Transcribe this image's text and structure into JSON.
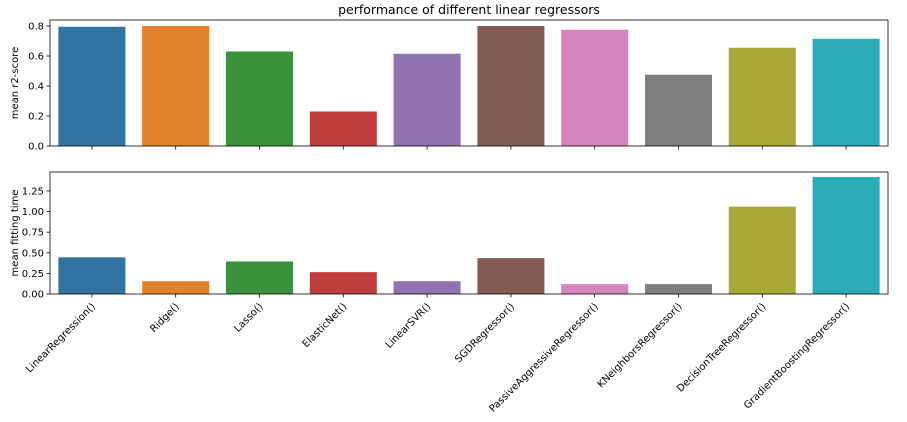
{
  "chart_data": [
    {
      "type": "bar",
      "title": "performance of different linear regressors",
      "xlabel": "",
      "ylabel": "mean r2-score",
      "ylim": [
        0,
        0.84
      ],
      "yticks": [
        "0.0",
        "0.2",
        "0.4",
        "0.6",
        "0.8"
      ],
      "grid": false,
      "categories": [
        "LinearRegression()",
        "Ridge()",
        "Lasso()",
        "ElasticNet()",
        "LinearSVR()",
        "SGDRegressor()",
        "PassiveAggressiveRegressor()",
        "KNeighborsRegressor()",
        "DecisionTreeRegressor()",
        "GradientBoostingRegressor()"
      ],
      "values": [
        0.795,
        0.8,
        0.63,
        0.23,
        0.615,
        0.8,
        0.775,
        0.475,
        0.655,
        0.715
      ],
      "colors": [
        "#3274a1",
        "#e1812c",
        "#3a923a",
        "#c03d3e",
        "#9372b2",
        "#845b53",
        "#d684bd",
        "#7f7f7f",
        "#a9aa35",
        "#2eabb8"
      ]
    },
    {
      "type": "bar",
      "title": "",
      "xlabel": "",
      "ylabel": "mean fitting time",
      "ylim": [
        0,
        1.48
      ],
      "yticks": [
        "0.00",
        "0.25",
        "0.50",
        "0.75",
        "1.00",
        "1.25"
      ],
      "grid": false,
      "categories": [
        "LinearRegression()",
        "Ridge()",
        "Lasso()",
        "ElasticNet()",
        "LinearSVR()",
        "SGDRegressor()",
        "PassiveAggressiveRegressor()",
        "KNeighborsRegressor()",
        "DecisionTreeRegressor()",
        "GradientBoostingRegressor()"
      ],
      "values": [
        0.445,
        0.155,
        0.395,
        0.265,
        0.155,
        0.435,
        0.12,
        0.12,
        1.06,
        1.42
      ],
      "colors": [
        "#3274a1",
        "#e1812c",
        "#3a923a",
        "#c03d3e",
        "#9372b2",
        "#845b53",
        "#d684bd",
        "#7f7f7f",
        "#a9aa35",
        "#2eabb8"
      ]
    }
  ]
}
